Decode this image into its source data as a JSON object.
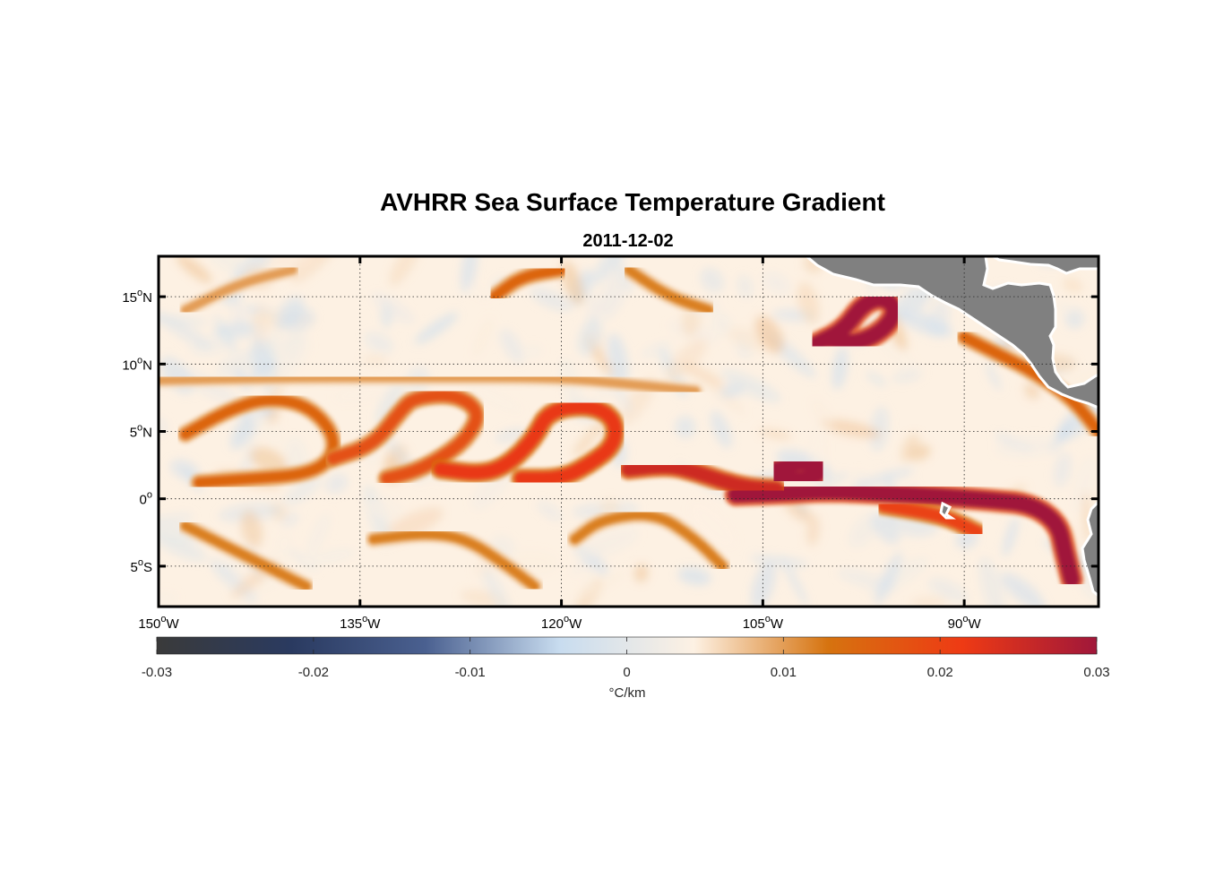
{
  "map": {
    "title": "AVHRR Sea Surface Temperature Gradient",
    "subtitle": "2011-12-02",
    "lon_range": [
      -150,
      -80
    ],
    "lat_range": [
      -8,
      18
    ],
    "grid": true,
    "x_ticks": [
      {
        "lon": -150,
        "deg": "150",
        "hemi": "W"
      },
      {
        "lon": -135,
        "deg": "135",
        "hemi": "W"
      },
      {
        "lon": -120,
        "deg": "120",
        "hemi": "W"
      },
      {
        "lon": -105,
        "deg": "105",
        "hemi": "W"
      },
      {
        "lon": -90,
        "deg": "90",
        "hemi": "W"
      }
    ],
    "y_ticks": [
      {
        "lat": 15,
        "deg": "15",
        "hemi": "N"
      },
      {
        "lat": 10,
        "deg": "10",
        "hemi": "N"
      },
      {
        "lat": 5,
        "deg": "5",
        "hemi": "N"
      },
      {
        "lat": 0,
        "deg": "0",
        "hemi": ""
      },
      {
        "lat": -5,
        "deg": "5",
        "hemi": "S"
      }
    ],
    "degree_symbol": "o",
    "land_color": "#808080",
    "ocean_background": "#fdf1e3"
  },
  "colorbar": {
    "range": [
      -0.03,
      0.03
    ],
    "ticks": [
      "-0.03",
      "-0.02",
      "-0.01",
      "0",
      "0.01",
      "0.02",
      "0.03"
    ],
    "label": "°C/km",
    "colors": [
      "#3a3a3a",
      "#2a3a60",
      "#4a6090",
      "#c8dcef",
      "#fdf1e3",
      "#d6730f",
      "#ee3a14",
      "#a0173a"
    ]
  },
  "features": {
    "fronts": [
      {
        "name": "equatorial-front-east",
        "lonlat": [
          [
            -107,
            0.3
          ],
          [
            -104,
            0.4
          ],
          [
            -100,
            0.6
          ],
          [
            -96,
            0.4
          ],
          [
            -92,
            0.2
          ],
          [
            -88,
            -0.1
          ],
          [
            -85,
            -0.4
          ],
          [
            -83,
            -1.8
          ],
          [
            -82.5,
            -4
          ],
          [
            -82,
            -6
          ]
        ],
        "strength": 0.03
      },
      {
        "name": "equatorial-front-mid",
        "lonlat": [
          [
            -115,
            2.2
          ],
          [
            -112,
            2.5
          ],
          [
            -110,
            2.0
          ],
          [
            -108,
            1.3
          ],
          [
            -106,
            0.8
          ],
          [
            -104,
            0.7
          ]
        ],
        "strength": 0.025
      },
      {
        "name": "tiw-wave-1",
        "lonlat": [
          [
            -148,
            4.8
          ],
          [
            -145,
            6.5
          ],
          [
            -142,
            7.5
          ],
          [
            -139,
            7.0
          ],
          [
            -137,
            5.0
          ],
          [
            -137,
            3.0
          ],
          [
            -139,
            1.8
          ],
          [
            -143,
            1.5
          ],
          [
            -147,
            1.2
          ]
        ],
        "strength": 0.015
      },
      {
        "name": "tiw-wave-2",
        "lonlat": [
          [
            -137,
            3.0
          ],
          [
            -134,
            4.0
          ],
          [
            -132,
            6.5
          ],
          [
            -131,
            7.5
          ],
          [
            -128,
            7.8
          ],
          [
            -126,
            6.5
          ],
          [
            -127,
            4.5
          ],
          [
            -129,
            3.0
          ],
          [
            -131,
            2.0
          ],
          [
            -133,
            1.5
          ]
        ],
        "strength": 0.018
      },
      {
        "name": "tiw-wave-3",
        "lonlat": [
          [
            -129,
            2.2
          ],
          [
            -126,
            1.8
          ],
          [
            -124,
            2.5
          ],
          [
            -122,
            4.5
          ],
          [
            -121,
            6.5
          ],
          [
            -118,
            7.0
          ],
          [
            -116,
            6.0
          ],
          [
            -116,
            4.0
          ],
          [
            -118,
            2.5
          ],
          [
            -120,
            1.5
          ],
          [
            -123,
            1.5
          ]
        ],
        "strength": 0.022
      },
      {
        "name": "northern-front",
        "lonlat": [
          [
            -150,
            8.8
          ],
          [
            -140,
            9.0
          ],
          [
            -130,
            9.0
          ],
          [
            -120,
            9.0
          ],
          [
            -115,
            8.5
          ],
          [
            -110,
            8.0
          ]
        ],
        "strength": 0.01
      },
      {
        "name": "tehuantepec-eddy",
        "lonlat": [
          [
            -101,
            11.5
          ],
          [
            -99,
            12.5
          ],
          [
            -97.5,
            14.5
          ],
          [
            -96,
            15.0
          ],
          [
            -95,
            14.0
          ],
          [
            -96,
            12.5
          ],
          [
            -98,
            11.5
          ],
          [
            -100,
            11.8
          ]
        ],
        "strength": 0.03
      },
      {
        "name": "eddy-at-3N",
        "lonlat": [
          [
            -104,
            2.2
          ],
          [
            -102,
            2.8
          ],
          [
            -100.5,
            2.4
          ],
          [
            -101,
            1.6
          ],
          [
            -103,
            1.3
          ],
          [
            -104,
            1.7
          ]
        ],
        "strength": 0.03
      },
      {
        "name": "southern-streaks",
        "lonlat": [
          [
            -148,
            -2
          ],
          [
            -145,
            -3.5
          ],
          [
            -142,
            -5
          ],
          [
            -139,
            -6.5
          ]
        ],
        "strength": 0.012
      },
      {
        "name": "southern-streaks-2",
        "lonlat": [
          [
            -134,
            -3
          ],
          [
            -130,
            -2.5
          ],
          [
            -127,
            -3
          ],
          [
            -124,
            -5
          ],
          [
            -122,
            -6.5
          ]
        ],
        "strength": 0.012
      },
      {
        "name": "southern-streaks-3",
        "lonlat": [
          [
            -119,
            -3
          ],
          [
            -117,
            -1.5
          ],
          [
            -113,
            -1
          ],
          [
            -110,
            -3
          ],
          [
            -108,
            -5
          ]
        ],
        "strength": 0.012
      },
      {
        "name": "galapagos-front",
        "lonlat": [
          [
            -96,
            -0.5
          ],
          [
            -93,
            -1
          ],
          [
            -91,
            -1.5
          ],
          [
            -89,
            -2.5
          ]
        ],
        "strength": 0.02
      },
      {
        "name": "north-streaks",
        "lonlat": [
          [
            -148,
            14
          ],
          [
            -144,
            16
          ],
          [
            -140,
            17
          ]
        ],
        "strength": 0.01
      },
      {
        "name": "north-streaks-2",
        "lonlat": [
          [
            -125,
            15
          ],
          [
            -123,
            16.5
          ],
          [
            -120,
            17
          ]
        ],
        "strength": 0.015
      },
      {
        "name": "north-streaks-3",
        "lonlat": [
          [
            -115,
            17
          ],
          [
            -112,
            15
          ],
          [
            -109,
            14
          ]
        ],
        "strength": 0.012
      },
      {
        "name": "coast-front",
        "lonlat": [
          [
            -90,
            12
          ],
          [
            -87,
            10.5
          ],
          [
            -85,
            9.5
          ],
          [
            -82,
            7.5
          ],
          [
            -80,
            5
          ]
        ],
        "strength": 0.015
      }
    ]
  }
}
